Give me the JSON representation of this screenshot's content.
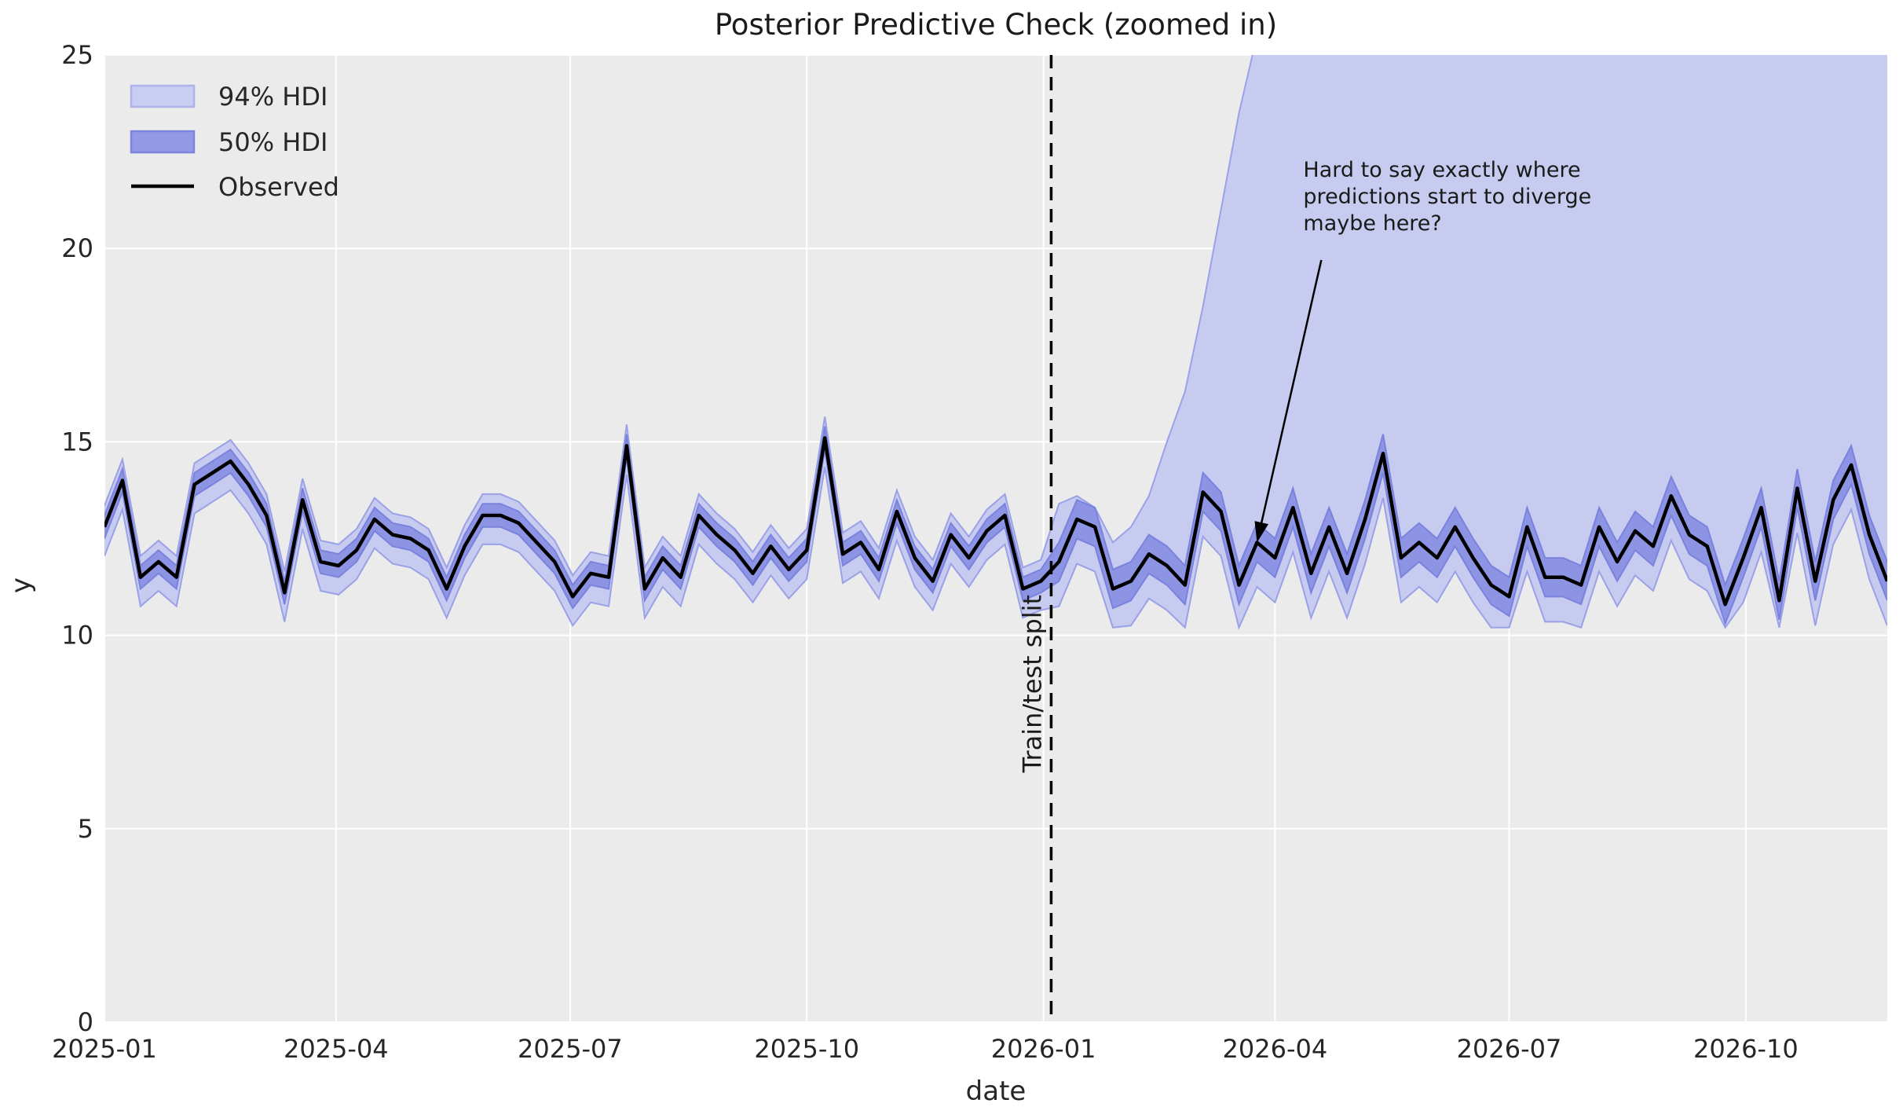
{
  "title": "Posterior Predictive Check (zoomed in)",
  "axes": {
    "xlabel": "date",
    "ylabel": "y",
    "yticks": [
      0,
      5,
      10,
      15,
      20,
      25
    ],
    "xticks": [
      {
        "label": "2025-01",
        "date": "2025-01-01"
      },
      {
        "label": "2025-04",
        "date": "2025-04-01"
      },
      {
        "label": "2025-07",
        "date": "2025-07-01"
      },
      {
        "label": "2025-10",
        "date": "2025-10-01"
      },
      {
        "label": "2026-01",
        "date": "2026-01-01"
      },
      {
        "label": "2026-04",
        "date": "2026-04-01"
      },
      {
        "label": "2026-07",
        "date": "2026-07-01"
      },
      {
        "label": "2026-10",
        "date": "2026-10-01"
      }
    ]
  },
  "legend": {
    "items": [
      {
        "label": "94% HDI",
        "type": "patch",
        "fill": "#c9cdf1",
        "edge": "#aeb4e9"
      },
      {
        "label": "50% HDI",
        "type": "patch",
        "fill": "#9399e6",
        "edge": "#7d84de"
      },
      {
        "label": "Observed",
        "type": "line",
        "color": "#000000"
      }
    ]
  },
  "split_line": {
    "label": "Train/test split",
    "date": "2026-01-04",
    "color": "#000000"
  },
  "annotation": {
    "lines": [
      "Hard to say exactly where",
      "predictions start to diverge",
      "maybe here?"
    ],
    "text_pos": {
      "date": "2026-04-12",
      "y": 22.4
    },
    "arrow_start": {
      "date": "2026-04-19",
      "y": 19.7
    },
    "arrow_tip": {
      "date": "2026-03-25",
      "y": 12.4
    }
  },
  "colors": {
    "plot_bg": "#ebebeb",
    "grid": "#ffffff",
    "hdi94_fill": "#c7cbef",
    "hdi94_edge": "#9aa1e6",
    "hdi50_fill": "#8d94e4",
    "hdi50_edge": "#7a82dd",
    "observed": "#000000"
  },
  "chart_data": {
    "type": "line",
    "title": "Posterior Predictive Check (zoomed in)",
    "xlabel": "date",
    "ylabel": "y",
    "ylim": [
      0,
      25
    ],
    "x_range": [
      "2025-01-01",
      "2026-11-25"
    ],
    "grid": true,
    "legend_position": "upper left",
    "dates": [
      "2025-01-01",
      "2025-01-08",
      "2025-01-15",
      "2025-01-22",
      "2025-01-29",
      "2025-02-05",
      "2025-02-12",
      "2025-02-19",
      "2025-02-26",
      "2025-03-05",
      "2025-03-12",
      "2025-03-19",
      "2025-03-26",
      "2025-04-02",
      "2025-04-09",
      "2025-04-16",
      "2025-04-23",
      "2025-04-30",
      "2025-05-07",
      "2025-05-14",
      "2025-05-21",
      "2025-05-28",
      "2025-06-04",
      "2025-06-11",
      "2025-06-18",
      "2025-06-25",
      "2025-07-02",
      "2025-07-09",
      "2025-07-16",
      "2025-07-23",
      "2025-07-30",
      "2025-08-06",
      "2025-08-13",
      "2025-08-20",
      "2025-08-27",
      "2025-09-03",
      "2025-09-10",
      "2025-09-17",
      "2025-09-24",
      "2025-10-01",
      "2025-10-08",
      "2025-10-15",
      "2025-10-22",
      "2025-10-29",
      "2025-11-05",
      "2025-11-12",
      "2025-11-19",
      "2025-11-26",
      "2025-12-03",
      "2025-12-10",
      "2025-12-17",
      "2025-12-24",
      "2025-12-31",
      "2026-01-07",
      "2026-01-14",
      "2026-01-21",
      "2026-01-28",
      "2026-02-04",
      "2026-02-11",
      "2026-02-18",
      "2026-02-25",
      "2026-03-04",
      "2026-03-11",
      "2026-03-18",
      "2026-03-25",
      "2026-04-01",
      "2026-04-08",
      "2026-04-15",
      "2026-04-22",
      "2026-04-29",
      "2026-05-06",
      "2026-05-13",
      "2026-05-20",
      "2026-05-27",
      "2026-06-03",
      "2026-06-10",
      "2026-06-17",
      "2026-06-24",
      "2026-07-01",
      "2026-07-08",
      "2026-07-15",
      "2026-07-22",
      "2026-07-29",
      "2026-08-05",
      "2026-08-12",
      "2026-08-19",
      "2026-08-26",
      "2026-09-02",
      "2026-09-09",
      "2026-09-16",
      "2026-09-23",
      "2026-09-30",
      "2026-10-07",
      "2026-10-14",
      "2026-10-21",
      "2026-10-28",
      "2026-11-04",
      "2026-11-11",
      "2026-11-18",
      "2026-11-25"
    ],
    "observed": [
      12.8,
      14.0,
      11.5,
      11.9,
      11.5,
      13.9,
      14.2,
      14.5,
      13.9,
      13.1,
      11.1,
      13.5,
      11.9,
      11.8,
      12.2,
      13.0,
      12.6,
      12.5,
      12.2,
      11.2,
      12.3,
      13.1,
      13.1,
      12.9,
      12.4,
      11.9,
      11.0,
      11.6,
      11.5,
      14.9,
      11.2,
      12.0,
      11.5,
      13.1,
      12.6,
      12.2,
      11.6,
      12.3,
      11.7,
      12.2,
      15.1,
      12.1,
      12.4,
      11.7,
      13.2,
      12.0,
      11.4,
      12.6,
      12.0,
      12.7,
      13.1,
      11.2,
      11.4,
      11.9,
      13.0,
      12.8,
      11.2,
      11.4,
      12.1,
      11.8,
      11.3,
      13.7,
      13.2,
      11.3,
      12.4,
      12.0,
      13.3,
      11.6,
      12.8,
      11.6,
      13.0,
      14.7,
      12.0,
      12.4,
      12.0,
      12.8,
      12.0,
      11.3,
      11.0,
      12.8,
      11.5,
      11.5,
      11.3,
      12.8,
      11.9,
      12.7,
      12.3,
      13.6,
      12.6,
      12.3,
      10.8,
      12.0,
      13.3,
      10.9,
      13.8,
      11.4,
      13.5,
      14.4,
      12.6,
      11.4
    ],
    "hdi94_high": [
      13.35,
      14.55,
      12.05,
      12.45,
      12.05,
      14.45,
      14.75,
      15.05,
      14.45,
      13.65,
      11.65,
      14.05,
      12.45,
      12.35,
      12.75,
      13.55,
      13.15,
      13.05,
      12.75,
      11.75,
      12.85,
      13.65,
      13.65,
      13.45,
      12.95,
      12.45,
      11.55,
      12.15,
      12.05,
      15.45,
      11.75,
      12.55,
      12.05,
      13.65,
      13.15,
      12.75,
      12.15,
      12.85,
      12.25,
      12.75,
      15.65,
      12.65,
      12.95,
      12.25,
      13.75,
      12.55,
      11.95,
      13.15,
      12.55,
      13.25,
      13.65,
      11.75,
      11.95,
      13.4,
      13.6,
      13.3,
      12.4,
      12.8,
      13.6,
      15.0,
      16.3,
      18.5,
      21.0,
      23.5,
      25.5,
      27,
      27,
      27,
      27,
      27,
      27,
      27,
      27,
      27,
      27,
      27,
      27,
      27,
      27,
      27,
      27,
      27,
      27,
      27,
      27,
      27,
      27,
      27,
      27,
      27,
      27,
      27,
      27,
      27,
      27,
      27,
      27,
      27,
      27,
      27
    ],
    "hdi94_low": [
      12.05,
      13.25,
      10.75,
      11.15,
      10.75,
      13.15,
      13.45,
      13.75,
      13.15,
      12.35,
      10.35,
      12.75,
      11.15,
      11.05,
      11.45,
      12.25,
      11.85,
      11.75,
      11.45,
      10.45,
      11.55,
      12.35,
      12.35,
      12.15,
      11.65,
      11.15,
      10.25,
      10.85,
      10.75,
      14.15,
      10.45,
      11.25,
      10.75,
      12.35,
      11.85,
      11.45,
      10.85,
      11.55,
      10.95,
      11.45,
      14.35,
      11.35,
      11.65,
      10.95,
      12.45,
      11.25,
      10.65,
      11.85,
      11.25,
      11.95,
      12.35,
      10.45,
      10.65,
      10.75,
      11.85,
      11.65,
      10.2,
      10.25,
      10.95,
      10.65,
      10.2,
      12.55,
      12.05,
      10.2,
      11.25,
      10.85,
      12.15,
      10.45,
      11.65,
      10.45,
      11.85,
      13.55,
      10.85,
      11.25,
      10.85,
      11.65,
      10.85,
      10.2,
      10.2,
      11.65,
      10.35,
      10.35,
      10.2,
      11.65,
      10.75,
      11.55,
      11.15,
      12.45,
      11.45,
      11.15,
      10.2,
      10.85,
      12.15,
      10.2,
      12.65,
      10.25,
      12.35,
      13.25,
      11.45,
      10.25
    ],
    "hdi50_high": [
      13.1,
      14.3,
      11.8,
      12.2,
      11.8,
      14.2,
      14.5,
      14.8,
      14.2,
      13.4,
      11.4,
      13.8,
      12.2,
      12.1,
      12.5,
      13.3,
      12.9,
      12.8,
      12.5,
      11.5,
      12.6,
      13.4,
      13.4,
      13.2,
      12.7,
      12.2,
      11.3,
      11.9,
      11.8,
      15.2,
      11.5,
      12.3,
      11.8,
      13.4,
      12.9,
      12.5,
      11.9,
      12.6,
      12.0,
      12.5,
      15.4,
      12.4,
      12.7,
      12.0,
      13.5,
      12.3,
      11.7,
      12.9,
      12.3,
      13.0,
      13.4,
      11.5,
      11.7,
      12.4,
      13.5,
      13.3,
      11.7,
      11.9,
      12.6,
      12.3,
      11.8,
      14.2,
      13.7,
      11.8,
      12.9,
      12.5,
      13.8,
      12.1,
      13.3,
      12.1,
      13.5,
      15.2,
      12.5,
      12.9,
      12.5,
      13.3,
      12.5,
      11.8,
      11.5,
      13.3,
      12.0,
      12.0,
      11.8,
      13.3,
      12.4,
      13.2,
      12.8,
      14.1,
      13.1,
      12.8,
      11.3,
      12.5,
      13.8,
      11.4,
      14.3,
      11.9,
      14.0,
      14.9,
      13.1,
      11.9
    ],
    "hdi50_low": [
      12.5,
      13.7,
      11.2,
      11.6,
      11.2,
      13.6,
      13.9,
      14.2,
      13.6,
      12.8,
      10.8,
      13.2,
      11.6,
      11.5,
      11.9,
      12.7,
      12.3,
      12.2,
      11.9,
      10.9,
      12.0,
      12.8,
      12.8,
      12.6,
      12.1,
      11.6,
      10.7,
      11.3,
      11.2,
      14.6,
      10.9,
      11.7,
      11.2,
      12.8,
      12.3,
      11.9,
      11.3,
      12.0,
      11.4,
      11.9,
      14.8,
      11.8,
      12.1,
      11.4,
      12.9,
      11.7,
      11.1,
      12.3,
      11.7,
      12.4,
      12.8,
      10.9,
      11.1,
      11.4,
      12.5,
      12.3,
      10.7,
      10.9,
      11.6,
      11.3,
      10.8,
      13.2,
      12.7,
      10.8,
      11.9,
      11.5,
      12.8,
      11.1,
      12.3,
      11.1,
      12.5,
      14.2,
      11.5,
      11.9,
      11.5,
      12.3,
      11.5,
      10.8,
      10.5,
      12.3,
      11.0,
      11.0,
      10.8,
      12.3,
      11.4,
      12.2,
      11.8,
      13.1,
      12.1,
      11.8,
      10.3,
      11.5,
      12.8,
      10.4,
      13.3,
      10.9,
      13.0,
      13.9,
      12.1,
      10.9
    ]
  }
}
